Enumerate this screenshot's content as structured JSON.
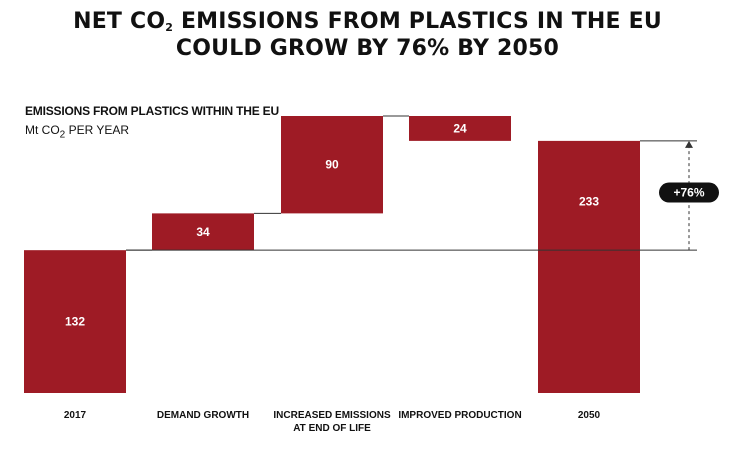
{
  "title": {
    "line1_prefix": "NET CO",
    "line1_sub": "2",
    "line1_suffix": " EMISSIONS FROM PLASTICS IN THE EU",
    "line2": "COULD GROW BY 76% BY 2050"
  },
  "colors": {
    "bar": "#9e1b25",
    "connector": "#333333",
    "pill": "#111111",
    "text": "#111111"
  },
  "chart_data": {
    "type": "bar",
    "subtype": "waterfall",
    "title": "NET CO2 EMISSIONS FROM PLASTICS IN THE EU COULD GROW BY 76% BY 2050",
    "subtitle": "EMISSIONS FROM PLASTICS WITHIN THE EU",
    "units_prefix": "Mt CO",
    "units_sub": "2",
    "units_suffix": " PER YEAR",
    "categories": [
      [
        "2017"
      ],
      [
        "DEMAND GROWTH"
      ],
      [
        "INCREASED EMISSIONS",
        "AT END OF LIFE"
      ],
      [
        "IMPROVED PRODUCTION"
      ],
      [
        "2050"
      ]
    ],
    "bars": [
      {
        "kind": "total",
        "start": 0,
        "end": 132,
        "label": "132"
      },
      {
        "kind": "increase",
        "start": 132,
        "end": 166,
        "label": "34"
      },
      {
        "kind": "increase",
        "start": 166,
        "end": 256,
        "label": "90"
      },
      {
        "kind": "decrease",
        "start": 256,
        "end": 233,
        "label": "24"
      },
      {
        "kind": "total",
        "start": 0,
        "end": 233,
        "label": "233"
      }
    ],
    "ylim": [
      0,
      256
    ],
    "grid": false,
    "legend": "none",
    "annotation": {
      "label": "+76%",
      "from_value": 132,
      "to_value": 233
    }
  }
}
